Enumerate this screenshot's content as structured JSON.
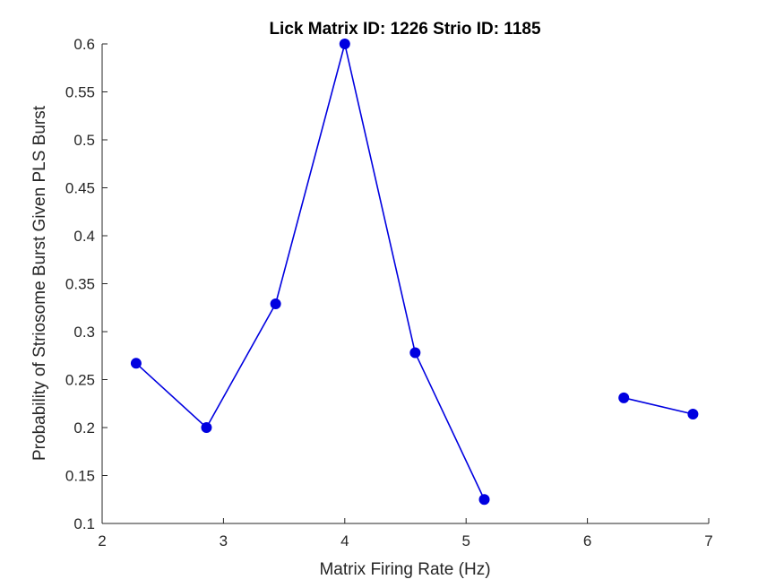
{
  "chart_data": {
    "type": "line",
    "title": "Lick Matrix ID: 1226 Strio ID: 1185",
    "xlabel": "Matrix Firing Rate (Hz)",
    "ylabel": "Probability of Striosome Burst Given PLS Burst",
    "xlim": [
      2,
      7
    ],
    "ylim": [
      0.1,
      0.6
    ],
    "xticks": [
      "2",
      "3",
      "4",
      "5",
      "6",
      "7"
    ],
    "yticks": [
      "0.1",
      "0.15",
      "0.2",
      "0.25",
      "0.3",
      "0.35",
      "0.4",
      "0.45",
      "0.5",
      "0.55",
      "0.6"
    ],
    "grid": false,
    "series": [
      {
        "color": "#0000e0",
        "marker": "circle",
        "points": [
          {
            "x": 2.28,
            "y": 0.267
          },
          {
            "x": 2.86,
            "y": 0.2
          },
          {
            "x": 3.43,
            "y": 0.329
          },
          {
            "x": 4.0,
            "y": 0.6
          },
          {
            "x": 4.58,
            "y": 0.278
          },
          {
            "x": 5.15,
            "y": 0.125
          },
          null,
          {
            "x": 6.3,
            "y": 0.231
          },
          {
            "x": 6.87,
            "y": 0.214
          }
        ]
      }
    ]
  }
}
